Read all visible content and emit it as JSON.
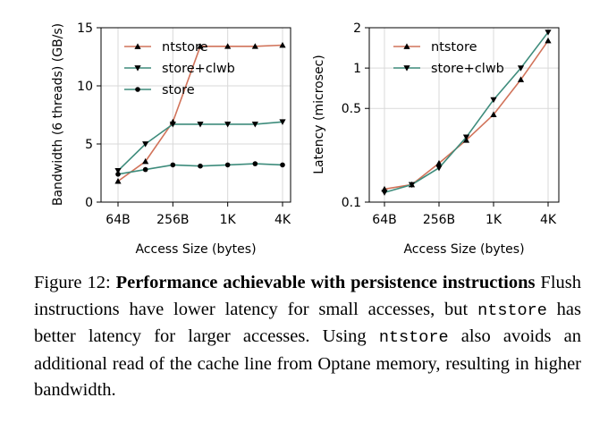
{
  "chart_data": [
    {
      "type": "line",
      "xlabel": "Access Size (bytes)",
      "ylabel": "Bandwidth (6 threads) (GB/s)",
      "x_categories": [
        "64B",
        "128B",
        "256B",
        "512B",
        "1K",
        "2K",
        "4K"
      ],
      "x_tick_labels": [
        "64B",
        "256B",
        "1K",
        "4K"
      ],
      "y_ticks": [
        "0",
        "5",
        "10",
        "15"
      ],
      "ylim": [
        0,
        15
      ],
      "grid": true,
      "legend_position": "top-left",
      "series": [
        {
          "name": "ntstore",
          "marker": "triangle-up",
          "color": "#d1735a",
          "values": [
            1.8,
            3.5,
            6.9,
            13.4,
            13.4,
            13.4,
            13.5
          ]
        },
        {
          "name": "store+clwb",
          "marker": "triangle-down",
          "color": "#3e8c7c",
          "values": [
            2.7,
            5.0,
            6.7,
            6.7,
            6.7,
            6.7,
            6.9
          ]
        },
        {
          "name": "store",
          "marker": "circle",
          "color": "#3e8c7c",
          "values": [
            2.4,
            2.8,
            3.2,
            3.1,
            3.2,
            3.3,
            3.2
          ]
        }
      ]
    },
    {
      "type": "line",
      "xlabel": "Access Size (bytes)",
      "ylabel": "Latency (microsec)",
      "x_categories": [
        "64B",
        "128B",
        "256B",
        "512B",
        "1K",
        "2K",
        "4K"
      ],
      "x_tick_labels": [
        "64B",
        "256B",
        "1K",
        "4K"
      ],
      "y_scale": "log",
      "y_ticks": [
        "0.1",
        "0.5",
        "1",
        "2"
      ],
      "ylim": [
        0.1,
        2
      ],
      "grid": true,
      "legend_position": "top-left",
      "series": [
        {
          "name": "ntstore",
          "marker": "triangle-up",
          "color": "#d1735a",
          "values": [
            0.125,
            0.135,
            0.195,
            0.29,
            0.45,
            0.82,
            1.6
          ]
        },
        {
          "name": "store+clwb",
          "marker": "triangle-down",
          "color": "#3e8c7c",
          "values": [
            0.118,
            0.135,
            0.18,
            0.305,
            0.58,
            1.0,
            1.85
          ]
        }
      ]
    }
  ],
  "caption": {
    "prefix": "Figure 12: ",
    "bold": "Performance achievable with persistence instructions",
    "t1": " Flush instructions have lower latency for small accesses, but ",
    "code1": "ntstore",
    "t2": " has better latency for larger accesses. Using ",
    "code2": "ntstore",
    "t3": " also avoids an additional read of the cache line from Optane memory, resulting in higher bandwidth."
  }
}
